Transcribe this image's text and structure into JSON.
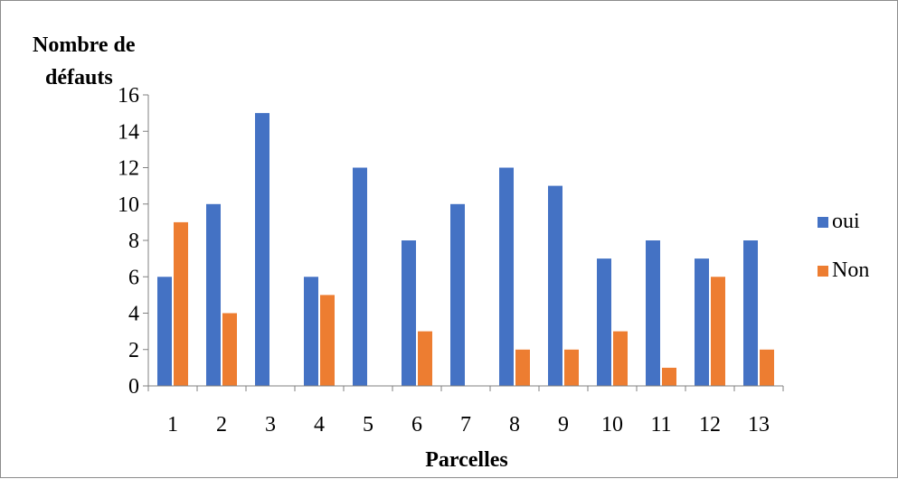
{
  "chart_data": {
    "type": "bar",
    "title": "",
    "xlabel": "Parcelles",
    "ylabel_line1": "Nombre de",
    "ylabel_line2": "défauts",
    "ylim": [
      0,
      16
    ],
    "yticks": [
      0,
      2,
      4,
      6,
      8,
      10,
      12,
      14,
      16
    ],
    "categories": [
      "1",
      "2",
      "3",
      "4",
      "5",
      "6",
      "7",
      "8",
      "9",
      "10",
      "11",
      "12",
      "13"
    ],
    "series": [
      {
        "name": "oui",
        "color": "#4472C4",
        "values": [
          6,
          10,
          15,
          6,
          12,
          8,
          10,
          12,
          11,
          7,
          8,
          7,
          8
        ]
      },
      {
        "name": "Non",
        "color": "#ED7D31",
        "values": [
          9,
          4,
          0,
          5,
          0,
          3,
          0,
          2,
          2,
          3,
          1,
          6,
          2
        ]
      }
    ],
    "legend": "right",
    "grid": false
  }
}
